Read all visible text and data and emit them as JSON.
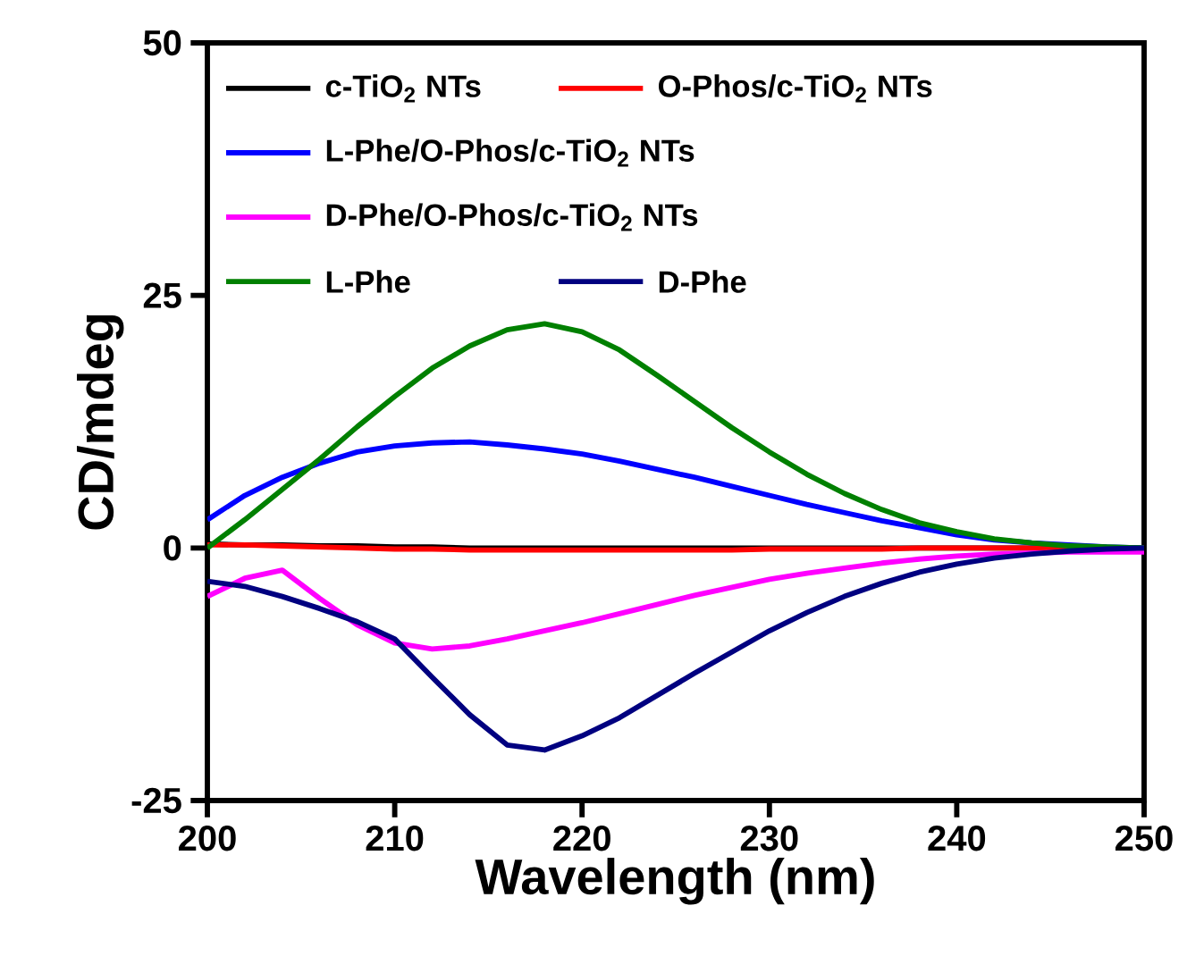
{
  "chart_data": {
    "type": "line",
    "xlabel": "Wavelength (nm)",
    "ylabel": "CD/mdeg",
    "x": [
      200,
      202,
      204,
      206,
      208,
      210,
      212,
      214,
      216,
      218,
      220,
      222,
      224,
      226,
      228,
      230,
      232,
      234,
      236,
      238,
      240,
      242,
      244,
      246,
      248,
      250
    ],
    "xlim": [
      200,
      250
    ],
    "xticks": [
      200,
      210,
      220,
      230,
      240,
      250
    ],
    "ylim": [
      -25,
      50
    ],
    "yticks": [
      -25,
      0,
      25,
      50
    ],
    "legend": "top left",
    "series": [
      {
        "name": "c-TiO$_{2}$ NTs",
        "color": "#000000",
        "values": [
          0.4,
          0.3,
          0.3,
          0.2,
          0.2,
          0.1,
          0.1,
          0,
          0,
          0,
          0,
          0,
          0,
          0,
          0,
          0,
          0,
          0,
          0,
          0,
          0,
          0,
          0,
          0,
          0,
          0
        ]
      },
      {
        "name": "O-Phos/c-TiO$_{2}$ NTs",
        "color": "#ff0000",
        "values": [
          0.3,
          0.3,
          0.2,
          0.1,
          0,
          -0.1,
          -0.1,
          -0.2,
          -0.2,
          -0.2,
          -0.2,
          -0.2,
          -0.2,
          -0.2,
          -0.2,
          -0.1,
          -0.1,
          -0.1,
          -0.1,
          0,
          0,
          0,
          0,
          0,
          0,
          0
        ]
      },
      {
        "name": "L-Phe/O-Phos/c-TiO$_{2}$ NTs",
        "color": "#0000ff",
        "values": [
          2.8,
          5.2,
          7.0,
          8.4,
          9.5,
          10.1,
          10.4,
          10.5,
          10.2,
          9.8,
          9.3,
          8.6,
          7.8,
          7.0,
          6.1,
          5.2,
          4.3,
          3.5,
          2.7,
          2.0,
          1.3,
          0.8,
          0.5,
          0.3,
          0.1,
          0
        ]
      },
      {
        "name": "D-Phe/O-Phos/c-TiO$_{2}$ NTs",
        "color": "#ff00ff",
        "values": [
          -4.8,
          -3.0,
          -2.2,
          -5.0,
          -7.6,
          -9.4,
          -10.0,
          -9.7,
          -9.0,
          -8.2,
          -7.4,
          -6.5,
          -5.6,
          -4.7,
          -3.9,
          -3.1,
          -2.5,
          -2,
          -1.5,
          -1.1,
          -0.8,
          -0.6,
          -0.5,
          -0.4,
          -0.4,
          -0.4
        ]
      },
      {
        "name": "L-Phe",
        "color": "#008000",
        "values": [
          0,
          2.8,
          5.8,
          8.8,
          12,
          15,
          17.8,
          20,
          21.6,
          22.2,
          21.4,
          19.6,
          17.1,
          14.5,
          11.9,
          9.5,
          7.3,
          5.4,
          3.8,
          2.5,
          1.6,
          0.9,
          0.5,
          0.2,
          0.1,
          0
        ]
      },
      {
        "name": "D-Phe",
        "color": "#000080",
        "values": [
          -3.3,
          -3.8,
          -4.8,
          -6.0,
          -7.3,
          -9.0,
          -12.8,
          -16.5,
          -19.5,
          -20.0,
          -18.6,
          -16.8,
          -14.6,
          -12.4,
          -10.3,
          -8.2,
          -6.4,
          -4.8,
          -3.5,
          -2.4,
          -1.6,
          -1,
          -0.6,
          -0.3,
          -0.1,
          0
        ]
      }
    ]
  }
}
